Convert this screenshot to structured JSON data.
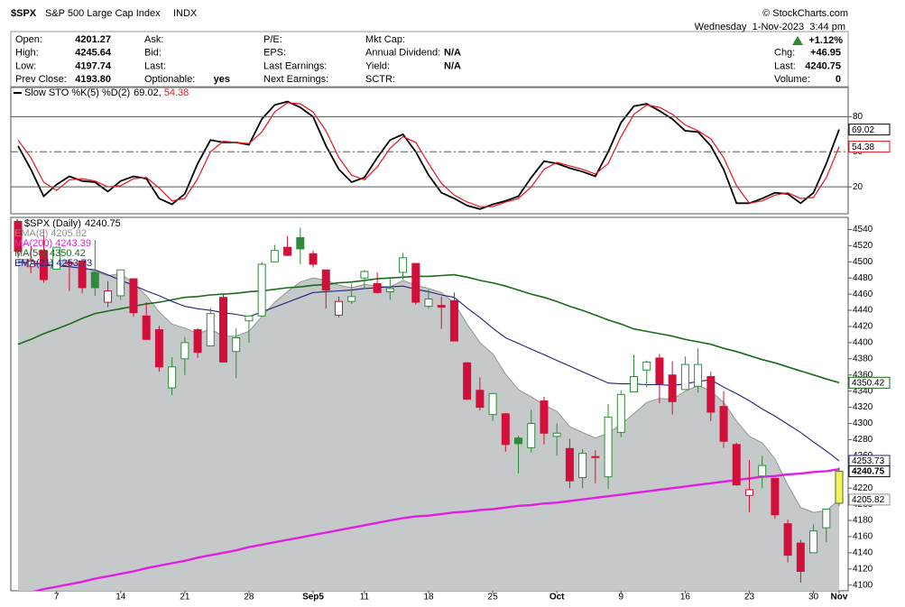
{
  "header": {
    "symbol": "$SPX",
    "name": "S&P 500 Large Cap Index",
    "exchange": "INDX",
    "credit": "© StockCharts.com",
    "datetime": "Wednesday  1-Nov-2023  3:44 pm",
    "change": "+1.12%",
    "columns": [
      [
        {
          "label": "Open:",
          "value": "4201.27"
        },
        {
          "label": "High:",
          "value": "4245.64"
        },
        {
          "label": "Low:",
          "value": "4197.74"
        },
        {
          "label": "Prev Close:",
          "value": "4193.80"
        }
      ],
      [
        {
          "label": "Ask:"
        },
        {
          "label": "Bid:"
        },
        {
          "label": "Last:"
        },
        {
          "label": "Optionable:",
          "value": "yes"
        }
      ],
      [
        {
          "label": "P/E:"
        },
        {
          "label": "EPS:"
        },
        {
          "label": "Last Earnings:"
        },
        {
          "label": "Next Earnings:"
        }
      ],
      [
        {
          "label": "Mkt Cap:"
        },
        {
          "label": "Annual Dividend:",
          "value": "N/A"
        },
        {
          "label": "Yield:",
          "value": "N/A"
        },
        {
          "label": "SCTR:"
        }
      ],
      [
        {
          "label": "Chg:",
          "value": "+46.95"
        },
        {
          "label": "Last:",
          "value": "4240.75"
        },
        {
          "label": "Volume:",
          "value": "0"
        }
      ]
    ]
  },
  "chart_data": [
    {
      "type": "line",
      "title": "Slow STO %K(5) %D(2)",
      "separator": ",",
      "ylim": [
        -3,
        105
      ],
      "yticks": [
        20,
        50,
        80
      ],
      "series": [
        {
          "color": "#000000",
          "values": [
            55,
            35,
            12,
            22,
            29,
            25,
            24,
            16,
            25,
            29,
            27,
            10,
            5,
            14,
            40,
            60,
            58,
            58,
            56,
            78,
            90,
            93,
            88,
            80,
            55,
            35,
            24,
            28,
            45,
            60,
            65,
            50,
            30,
            15,
            10,
            4,
            1,
            5,
            8,
            12,
            28,
            42,
            40,
            36,
            33,
            29,
            50,
            75,
            89,
            91,
            85,
            78,
            68,
            67,
            55,
            35,
            6,
            6,
            10,
            15,
            14,
            6,
            15,
            40,
            69.02
          ]
        },
        {
          "color": "#e8141e",
          "values": [
            60,
            45,
            24,
            17,
            26,
            27,
            25,
            20,
            21,
            27,
            28,
            19,
            8,
            10,
            27,
            50,
            59,
            58,
            57,
            67,
            84,
            92,
            91,
            84,
            68,
            45,
            30,
            26,
            37,
            53,
            63,
            58,
            40,
            23,
            13,
            7,
            3,
            3,
            7,
            10,
            20,
            35,
            41,
            38,
            35,
            31,
            40,
            63,
            82,
            90,
            88,
            82,
            73,
            68,
            61,
            45,
            21,
            6,
            8,
            13,
            15,
            10,
            11,
            28,
            54.38
          ]
        }
      ]
    },
    {
      "type": "candlestick",
      "title": "$SPX (Daily)",
      "categories": [
        null,
        null,
        null,
        "7",
        null,
        null,
        null,
        null,
        "14",
        null,
        null,
        null,
        null,
        "21",
        null,
        null,
        null,
        null,
        "28",
        null,
        null,
        null,
        null,
        "Sep5",
        null,
        null,
        null,
        "11",
        null,
        null,
        null,
        null,
        "18",
        null,
        null,
        null,
        null,
        "25",
        null,
        null,
        null,
        null,
        "Oct",
        null,
        null,
        null,
        null,
        "9",
        null,
        null,
        null,
        null,
        "16",
        null,
        null,
        null,
        null,
        "23",
        null,
        null,
        null,
        null,
        "30",
        null,
        "Nov"
      ],
      "open": [
        4550,
        4494,
        4514,
        4491,
        4498,
        4501,
        4487,
        4450,
        4458,
        4479,
        4433,
        4416,
        4344,
        4380,
        4416,
        4396,
        4456,
        4389,
        4427,
        4433,
        4500,
        4518,
        4530,
        4510,
        4490,
        4434,
        4451,
        4480,
        4473,
        4463,
        4487,
        4498,
        4445,
        4446,
        4452,
        4375,
        4341,
        4311,
        4312,
        4282,
        4270,
        4328,
        4284,
        4269,
        4233,
        4259,
        4234,
        4289,
        4339,
        4366,
        4381,
        4360,
        4342,
        4346,
        4358,
        4321,
        4274,
        4211,
        4235,
        4232,
        4176,
        4152,
        4140,
        4171,
        4201.27
      ],
      "high": [
        4551,
        4519,
        4540,
        4519,
        4503,
        4502,
        4527,
        4476,
        4490,
        4479,
        4450,
        4421,
        4382,
        4407,
        4418,
        4443,
        4459,
        4418,
        4434,
        4500,
        4521,
        4532,
        4542,
        4514,
        4490,
        4457,
        4473,
        4490,
        4487,
        4479,
        4511,
        4498,
        4466,
        4457,
        4462,
        4376,
        4357,
        4338,
        4313,
        4285,
        4317,
        4333,
        4300,
        4281,
        4268,
        4267,
        4324,
        4341,
        4385,
        4378,
        4386,
        4377,
        4383,
        4393,
        4364,
        4340,
        4276,
        4255,
        4260,
        4232,
        4181,
        4156,
        4175,
        4194,
        4245.64
      ],
      "low": [
        4505,
        4486,
        4474,
        4491,
        4464,
        4461,
        4458,
        4444,
        4453,
        4432,
        4404,
        4364,
        4335,
        4360,
        4381,
        4396,
        4376,
        4356,
        4400,
        4432,
        4500,
        4507,
        4497,
        4493,
        4442,
        4431,
        4448,
        4467,
        4461,
        4453,
        4478,
        4447,
        4442,
        4417,
        4402,
        4329,
        4316,
        4303,
        4265,
        4238,
        4264,
        4274,
        4260,
        4220,
        4220,
        4226,
        4219,
        4283,
        4339,
        4345,
        4325,
        4311,
        4342,
        4338,
        4303,
        4270,
        4223,
        4190,
        4220,
        4182,
        4128,
        4103,
        4140,
        4153,
        4197.74
      ],
      "close": [
        4513,
        4501,
        4478,
        4518,
        4499,
        4468,
        4468,
        4464,
        4490,
        4437,
        4404,
        4370,
        4370,
        4400,
        4388,
        4436,
        4376,
        4406,
        4433,
        4497,
        4514,
        4508,
        4516,
        4497,
        4465,
        4451,
        4457,
        4488,
        4462,
        4467,
        4505,
        4450,
        4454,
        4444,
        4402,
        4330,
        4320,
        4337,
        4274,
        4275,
        4300,
        4288,
        4288,
        4229,
        4263,
        4258,
        4308,
        4336,
        4358,
        4376,
        4349,
        4327,
        4373,
        4373,
        4314,
        4278,
        4224,
        4218,
        4248,
        4187,
        4137,
        4117,
        4167,
        4194,
        4240.75
      ],
      "up_color": "#2e8b3a",
      "down_color": "#d0103a",
      "highlight_color": "#f2f25a",
      "ylim": [
        4093,
        4555
      ],
      "yticks": [
        4100,
        4120,
        4140,
        4160,
        4180,
        4200,
        4220,
        4240,
        4260,
        4280,
        4300,
        4320,
        4340,
        4360,
        4380,
        4400,
        4420,
        4440,
        4460,
        4480,
        4500,
        4520,
        4540
      ],
      "series": [
        {
          "name": "EMA(8)",
          "color": "#8e9494",
          "fill": "#c5c9c9",
          "values": [
            4503,
            4503,
            4497,
            4502,
            4501,
            4494,
            4488,
            4483,
            4485,
            4474,
            4458,
            4438,
            4423,
            4418,
            4411,
            4417,
            4408,
            4408,
            4414,
            4432,
            4450,
            4463,
            4475,
            4480,
            4477,
            4471,
            4468,
            4472,
            4470,
            4469,
            4477,
            4471,
            4467,
            4462,
            4449,
            4423,
            4400,
            4386,
            4361,
            4342,
            4333,
            4323,
            4315,
            4296,
            4289,
            4282,
            4288,
            4299,
            4312,
            4326,
            4331,
            4330,
            4340,
            4347,
            4340,
            4326,
            4303,
            4284,
            4276,
            4256,
            4224,
            4196,
            4190,
            4192,
            4205.82
          ]
        },
        {
          "name": "MA(200)",
          "color": "#e020e0",
          "tag": false,
          "values": [
            4088,
            4091,
            4095,
            4098,
            4101,
            4104,
            4108,
            4111,
            4114,
            4117,
            4121,
            4124,
            4127,
            4130,
            4134,
            4137,
            4140,
            4143,
            4147,
            4150,
            4153,
            4156,
            4159,
            4162,
            4165,
            4168,
            4171,
            4174,
            4177,
            4180,
            4183,
            4185,
            4186,
            4188,
            4190,
            4191,
            4193,
            4194,
            4196,
            4198,
            4199,
            4201,
            4202,
            4204,
            4206,
            4208,
            4210,
            4212,
            4214,
            4216,
            4218,
            4220,
            4222,
            4224,
            4226,
            4228,
            4230,
            4232,
            4234,
            4235,
            4237,
            4238,
            4240,
            4241,
            4243.39
          ]
        },
        {
          "name": "MA(50)",
          "color": "#1a6b1a",
          "values": [
            4398,
            4404,
            4411,
            4417,
            4423,
            4430,
            4436,
            4439,
            4442,
            4445,
            4448,
            4450,
            4453,
            4456,
            4457,
            4459,
            4460,
            4461,
            4463,
            4464,
            4466,
            4468,
            4469,
            4471,
            4472,
            4474,
            4475,
            4477,
            4479,
            4480,
            4481,
            4482,
            4482,
            4483,
            4484,
            4481,
            4477,
            4474,
            4470,
            4465,
            4460,
            4456,
            4451,
            4445,
            4440,
            4434,
            4428,
            4423,
            4417,
            4414,
            4411,
            4408,
            4404,
            4401,
            4398,
            4393,
            4389,
            4384,
            4379,
            4375,
            4370,
            4365,
            4360,
            4355,
            4350.42
          ]
        },
        {
          "name": "EMA(21)",
          "color": "#22227a",
          "values": [
            4500,
            4498,
            4497,
            4495,
            4494,
            4492,
            4490,
            4484,
            4477,
            4471,
            4464,
            4458,
            4451,
            4445,
            4442,
            4440,
            4437,
            4435,
            4432,
            4438,
            4444,
            4450,
            4456,
            4462,
            4463,
            4464,
            4465,
            4467,
            4468,
            4469,
            4470,
            4466,
            4463,
            4459,
            4456,
            4443,
            4431,
            4418,
            4406,
            4399,
            4392,
            4385,
            4378,
            4371,
            4364,
            4357,
            4350,
            4349,
            4349,
            4348,
            4348,
            4347,
            4349,
            4352,
            4354,
            4345,
            4337,
            4328,
            4318,
            4309,
            4299,
            4289,
            4277,
            4266,
            4253.73
          ]
        }
      ]
    }
  ]
}
